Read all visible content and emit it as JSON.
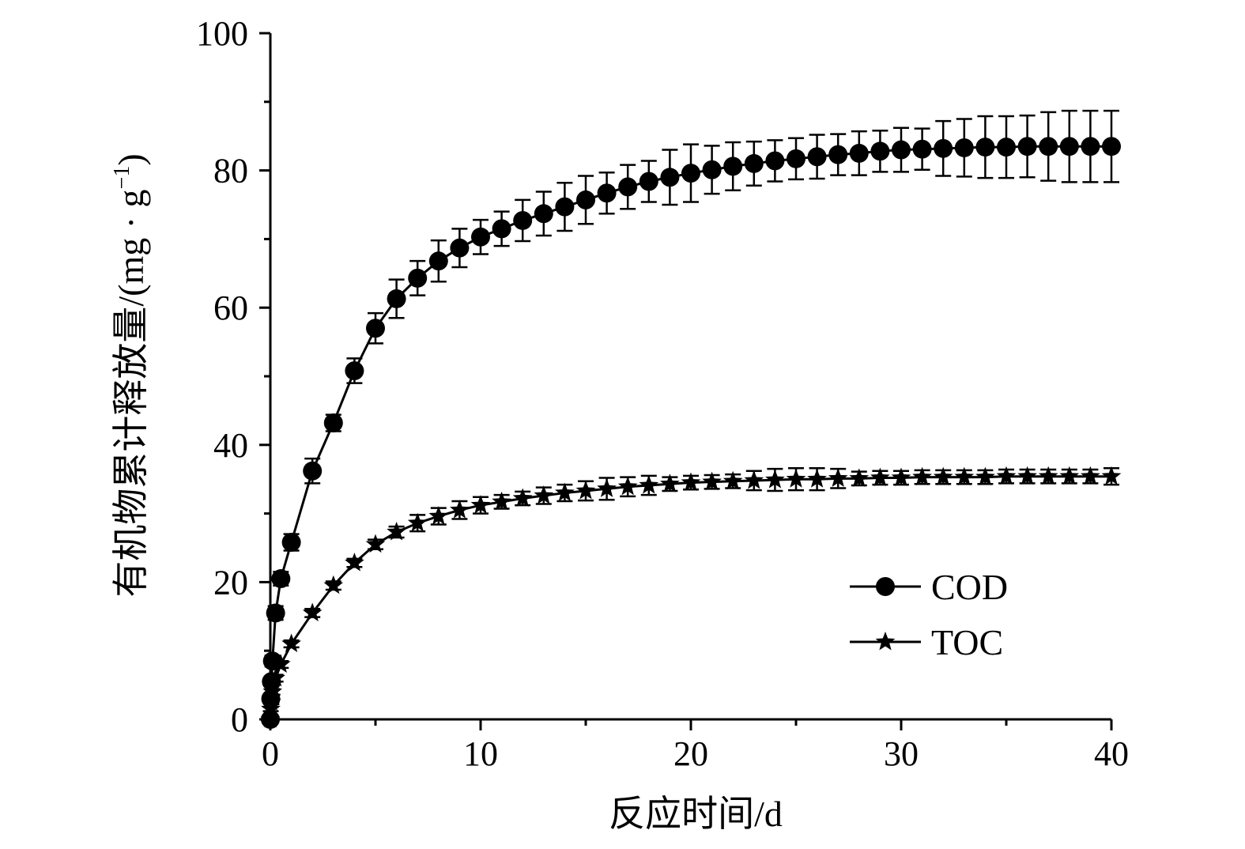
{
  "chart_data": {
    "type": "line",
    "title": "",
    "xlabel": "反应时间/d",
    "ylabel": "有机物累计释放量/(mg · g",
    "ylabel_sup": "−1",
    "ylabel_close": ")",
    "xlim": [
      0,
      40
    ],
    "ylim": [
      0,
      100
    ],
    "x_ticks": [
      0,
      10,
      20,
      30,
      40
    ],
    "x_tick_labels": [
      "0",
      "10",
      "20",
      "30",
      "40"
    ],
    "y_ticks": [
      0,
      20,
      40,
      60,
      80,
      100
    ],
    "y_tick_labels": [
      "0",
      "20",
      "40",
      "60",
      "80",
      "100"
    ],
    "x_minor_step": 5,
    "y_minor_step": 10,
    "grid": false,
    "legend_position": "bottom-right",
    "series": [
      {
        "name": "COD",
        "marker": "circle",
        "x": [
          0,
          0.02,
          0.05,
          0.1,
          0.25,
          0.5,
          1,
          2,
          3,
          4,
          5,
          6,
          7,
          8,
          9,
          10,
          11,
          12,
          13,
          14,
          15,
          16,
          17,
          18,
          19,
          20,
          21,
          22,
          23,
          24,
          25,
          26,
          27,
          28,
          29,
          30,
          31,
          32,
          33,
          34,
          35,
          36,
          37,
          38,
          39,
          40
        ],
        "y": [
          0,
          3,
          5.5,
          8.5,
          15.5,
          20.5,
          25.8,
          36.2,
          43.2,
          50.8,
          57.0,
          61.3,
          64.3,
          66.8,
          68.7,
          70.3,
          71.5,
          72.7,
          73.7,
          74.7,
          75.7,
          76.7,
          77.6,
          78.4,
          79.0,
          79.6,
          80.1,
          80.6,
          81.0,
          81.4,
          81.7,
          82.0,
          82.3,
          82.5,
          82.8,
          83.0,
          83.1,
          83.2,
          83.3,
          83.4,
          83.4,
          83.5,
          83.5,
          83.5,
          83.5,
          83.5
        ],
        "error": [
          0,
          0.5,
          0.5,
          0.8,
          1,
          1,
          1.2,
          1.8,
          1.2,
          1.8,
          2.2,
          2.8,
          2.5,
          3.0,
          2.8,
          2.5,
          2.5,
          3.0,
          3.2,
          3.5,
          3.5,
          3.0,
          3.2,
          3.0,
          4.0,
          4.2,
          3.5,
          3.5,
          3.2,
          3.0,
          3.0,
          3.2,
          3.0,
          3.2,
          3.0,
          3.2,
          3.0,
          4.0,
          4.2,
          4.5,
          4.5,
          4.5,
          5.0,
          5.2,
          5.2,
          5.2
        ]
      },
      {
        "name": "TOC",
        "marker": "star",
        "x": [
          0,
          0.02,
          0.05,
          0.1,
          0.25,
          0.5,
          1,
          2,
          3,
          4,
          5,
          6,
          7,
          8,
          9,
          10,
          11,
          12,
          13,
          14,
          15,
          16,
          17,
          18,
          19,
          20,
          21,
          22,
          23,
          24,
          25,
          26,
          27,
          28,
          29,
          30,
          31,
          32,
          33,
          34,
          35,
          36,
          37,
          38,
          39,
          40
        ],
        "y": [
          0,
          1.5,
          2.5,
          4,
          6,
          8,
          11,
          15.5,
          19.5,
          22.8,
          25.5,
          27.3,
          28.6,
          29.6,
          30.5,
          31.2,
          31.7,
          32.2,
          32.6,
          33.0,
          33.3,
          33.6,
          33.9,
          34.1,
          34.3,
          34.5,
          34.6,
          34.7,
          34.8,
          34.9,
          35.0,
          35.0,
          35.1,
          35.1,
          35.2,
          35.2,
          35.3,
          35.3,
          35.3,
          35.3,
          35.4,
          35.4,
          35.4,
          35.4,
          35.4,
          35.4
        ],
        "error": [
          0,
          0.3,
          0.3,
          0.4,
          0.5,
          0.5,
          0.5,
          0.6,
          0.6,
          0.6,
          0.7,
          0.8,
          1.2,
          1.2,
          1.3,
          1.2,
          1.0,
          1.0,
          1.2,
          1.2,
          1.4,
          1.6,
          1.4,
          1.4,
          1.0,
          1.0,
          1.0,
          1.0,
          1.4,
          1.6,
          1.6,
          1.6,
          1.4,
          1.0,
          1.0,
          1.0,
          1.0,
          1.0,
          1.0,
          1.0,
          1.0,
          1.0,
          1.0,
          1.0,
          1.0,
          1.2
        ]
      }
    ]
  }
}
